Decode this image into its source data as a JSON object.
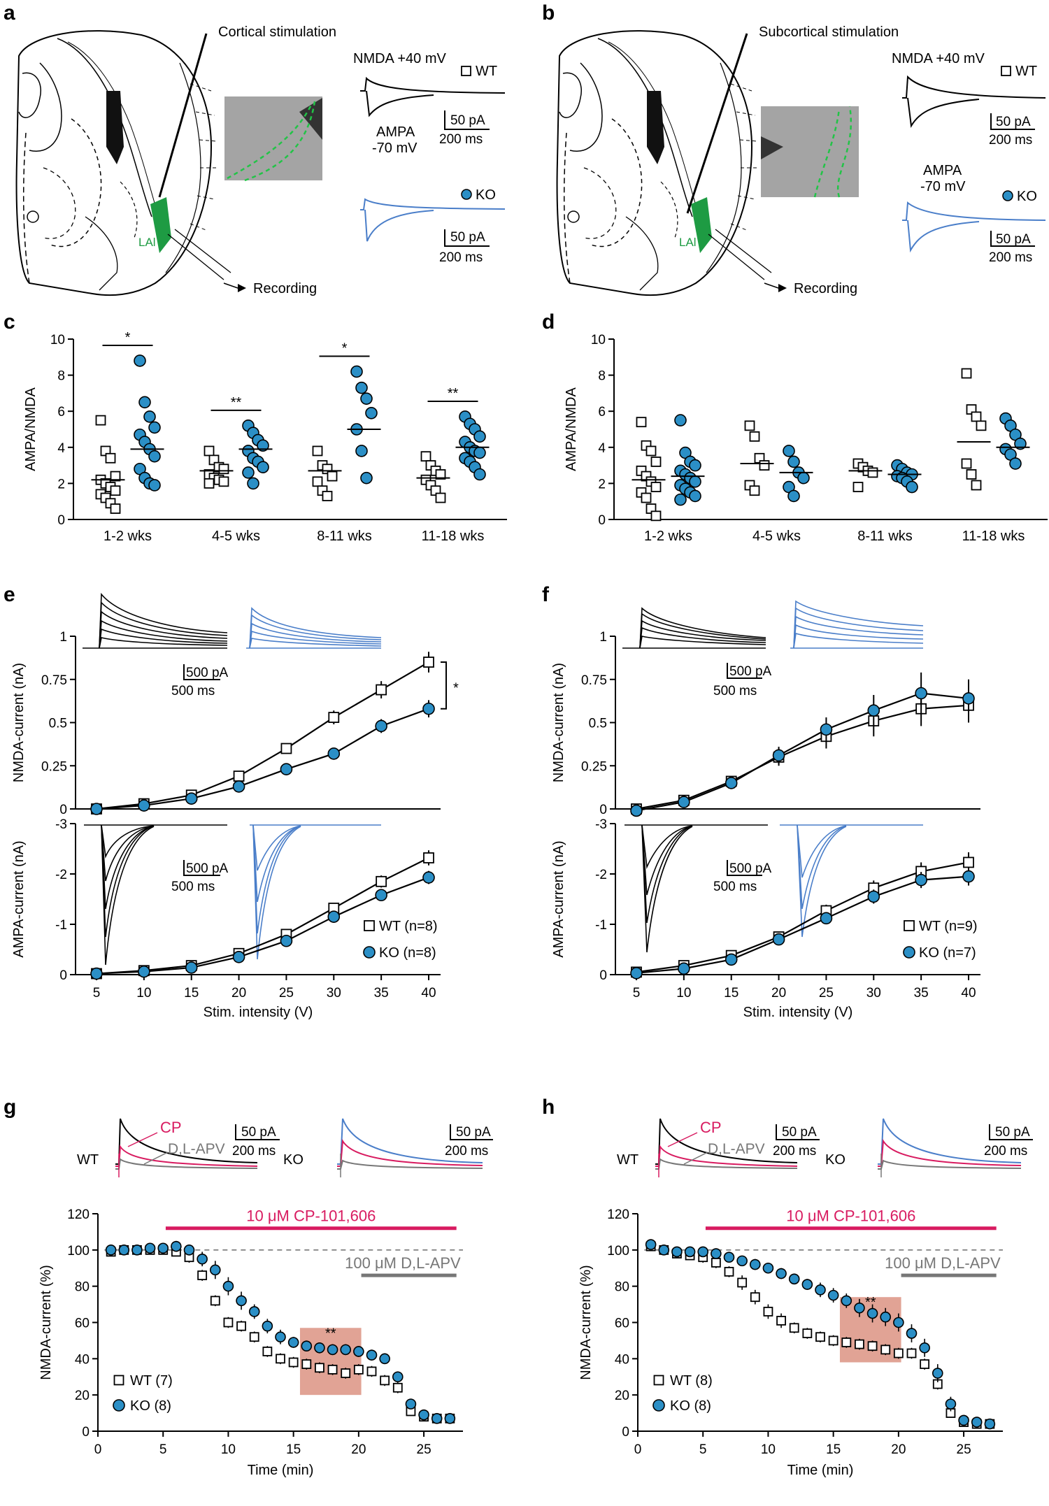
{
  "colors": {
    "wt": "#000000",
    "ko_fill": "#2b8fc6",
    "ko_trace": "#4a7ec9",
    "cp": "#d81b60",
    "apv": "#777777",
    "lal": "#1e9b43",
    "box": "#d98c7a"
  },
  "panels": {
    "a": {
      "letter": "a",
      "stim_label": "Cortical stimulation",
      "region_label": "LAl",
      "recording_label": "Recording",
      "nmda_label": "NMDA +40 mV",
      "ampa_label": "AMPA",
      "ampa_mv": "-70 mV",
      "wt_label": "WT",
      "ko_label": "KO",
      "scale_pa": "50 pA",
      "scale_ms": "200 ms"
    },
    "b": {
      "letter": "b",
      "stim_label": "Subcortical stimulation",
      "region_label": "LAl",
      "recording_label": "Recording",
      "nmda_label": "NMDA +40 mV",
      "ampa_label": "AMPA",
      "ampa_mv": "-70 mV",
      "wt_label": "WT",
      "ko_label": "KO",
      "scale_pa": "50 pA",
      "scale_ms": "200 ms"
    },
    "c": {
      "letter": "c"
    },
    "d": {
      "letter": "d"
    },
    "e": {
      "letter": "e",
      "scale_pa": "500 pA",
      "scale_ms": "500 ms",
      "sig": "*"
    },
    "f": {
      "letter": "f",
      "scale_pa": "500 pA",
      "scale_ms": "500 ms"
    },
    "g": {
      "letter": "g",
      "wt_label": "WT",
      "ko_label": "KO",
      "cp_label": "CP",
      "apv_label": "D,L-APV",
      "scale_pa": "50 pA",
      "scale_ms": "200 ms"
    },
    "h": {
      "letter": "h",
      "wt_label": "WT",
      "ko_label": "KO",
      "cp_label": "CP",
      "apv_label": "D,L-APV",
      "scale_pa": "50 pA",
      "scale_ms": "200 ms"
    }
  },
  "chart_data": [
    {
      "id": "c",
      "type": "scatter",
      "ylabel": "AMPA/NMDA",
      "ylim": [
        0,
        10
      ],
      "yticks": [
        0,
        2,
        4,
        6,
        8,
        10
      ],
      "categories": [
        "1-2 wks",
        "4-5 wks",
        "8-11 wks",
        "11-18 wks"
      ],
      "series": [
        {
          "name": "WT",
          "values": [
            [
              5.5,
              3.8,
              3.4,
              2.4,
              2.2,
              2.0,
              1.8,
              1.6,
              1.4,
              1.2,
              0.9,
              0.6
            ],
            [
              3.8,
              3.3,
              2.9,
              2.8,
              2.5,
              2.3,
              2.2,
              2.1,
              2.0
            ],
            [
              3.8,
              3.0,
              2.8,
              2.4,
              2.1,
              1.6,
              1.3
            ],
            [
              3.5,
              3.0,
              2.7,
              2.5,
              2.2,
              1.9,
              1.6,
              1.2
            ]
          ],
          "means": [
            2.2,
            2.7,
            2.7,
            2.3
          ]
        },
        {
          "name": "KO",
          "values": [
            [
              8.8,
              6.5,
              5.7,
              5.1,
              4.7,
              4.3,
              3.9,
              3.5,
              2.8,
              2.3,
              2.0,
              1.9
            ],
            [
              5.2,
              4.8,
              4.4,
              4.1,
              3.8,
              3.4,
              3.2,
              2.9,
              2.6,
              2.0
            ],
            [
              8.2,
              7.3,
              6.7,
              5.9,
              5.0,
              3.8,
              2.3
            ],
            [
              5.7,
              5.3,
              5.0,
              4.6,
              4.3,
              4.0,
              3.8,
              3.7,
              3.4,
              3.2,
              2.9,
              2.5
            ]
          ],
          "means": [
            3.9,
            3.9,
            5.0,
            4.0
          ]
        }
      ],
      "significance": [
        "*",
        "**",
        "*",
        "**"
      ]
    },
    {
      "id": "d",
      "type": "scatter",
      "ylabel": "AMPA/NMDA",
      "ylim": [
        0,
        10
      ],
      "yticks": [
        0,
        2,
        4,
        6,
        8,
        10
      ],
      "categories": [
        "1-2 wks",
        "4-5 wks",
        "8-11 wks",
        "11-18 wks"
      ],
      "series": [
        {
          "name": "WT",
          "values": [
            [
              5.4,
              4.1,
              3.8,
              3.2,
              2.7,
              2.4,
              2.1,
              1.8,
              1.5,
              1.2,
              0.6,
              0.2
            ],
            [
              5.2,
              4.6,
              3.4,
              3.0,
              1.9,
              1.6
            ],
            [
              3.1,
              2.9,
              2.7,
              2.6,
              1.8
            ],
            [
              8.1,
              6.1,
              5.7,
              5.2,
              3.1,
              2.5,
              1.9
            ]
          ],
          "means": [
            2.2,
            3.1,
            2.7,
            4.3
          ]
        },
        {
          "name": "KO",
          "values": [
            [
              5.5,
              3.7,
              3.2,
              3.0,
              2.7,
              2.5,
              2.3,
              2.1,
              1.9,
              1.7,
              1.5,
              1.3,
              1.1
            ],
            [
              3.8,
              3.2,
              2.6,
              2.3,
              1.8,
              1.3
            ],
            [
              3.0,
              2.8,
              2.6,
              2.5,
              2.4,
              2.3,
              2.1,
              1.8
            ],
            [
              5.6,
              5.2,
              4.7,
              4.2,
              3.9,
              3.6,
              3.1
            ]
          ],
          "means": [
            2.4,
            2.6,
            2.5,
            4.0
          ]
        }
      ],
      "significance": []
    },
    {
      "id": "e",
      "type": "line",
      "xlabel": "Stim. intensity (V)",
      "x": [
        5,
        10,
        15,
        20,
        25,
        30,
        35,
        40
      ],
      "subplots": [
        {
          "ylabel": "NMDA-current (nA)",
          "ylim": [
            0,
            1
          ],
          "yticks": [
            0,
            0.25,
            0.5,
            0.75,
            1
          ],
          "ytick_labels": [
            "0",
            "0.25",
            "0.5",
            "0.75",
            "1"
          ],
          "series": [
            {
              "name": "WT",
              "values": [
                0.0,
                0.03,
                0.08,
                0.19,
                0.35,
                0.53,
                0.69,
                0.85
              ],
              "err": [
                0.01,
                0.01,
                0.02,
                0.02,
                0.03,
                0.04,
                0.05,
                0.06
              ]
            },
            {
              "name": "KO",
              "values": [
                0.0,
                0.02,
                0.06,
                0.13,
                0.23,
                0.32,
                0.48,
                0.58
              ],
              "err": [
                0.01,
                0.01,
                0.01,
                0.02,
                0.02,
                0.03,
                0.04,
                0.05
              ]
            }
          ]
        },
        {
          "ylabel": "AMPA-current (nA)",
          "ylim": [
            0,
            -3
          ],
          "yticks": [
            0,
            -1,
            -2,
            -3
          ],
          "ytick_labels": [
            "0",
            "-1",
            "-2",
            "-3"
          ],
          "series": [
            {
              "name": "WT (n=8)",
              "values": [
                -0.02,
                -0.08,
                -0.18,
                -0.42,
                -0.8,
                -1.32,
                -1.85,
                -2.32
              ],
              "err": [
                0.02,
                0.03,
                0.04,
                0.06,
                0.08,
                0.1,
                0.12,
                0.15
              ]
            },
            {
              "name": "KO (n=8)",
              "values": [
                -0.02,
                -0.06,
                -0.14,
                -0.35,
                -0.67,
                -1.15,
                -1.58,
                -1.93
              ],
              "err": [
                0.02,
                0.03,
                0.04,
                0.05,
                0.07,
                0.09,
                0.11,
                0.13
              ]
            }
          ]
        }
      ]
    },
    {
      "id": "f",
      "type": "line",
      "xlabel": "Stim. intensity (V)",
      "x": [
        5,
        10,
        15,
        20,
        25,
        30,
        35,
        40
      ],
      "subplots": [
        {
          "ylabel": "NMDA-current (nA)",
          "ylim": [
            0,
            1
          ],
          "yticks": [
            0,
            0.25,
            0.5,
            0.75,
            1
          ],
          "ytick_labels": [
            "0",
            "0.25",
            "0.5",
            "0.75",
            "1"
          ],
          "series": [
            {
              "name": "WT",
              "values": [
                0.0,
                0.05,
                0.16,
                0.3,
                0.42,
                0.51,
                0.58,
                0.6
              ],
              "err": [
                0.01,
                0.02,
                0.03,
                0.05,
                0.07,
                0.09,
                0.1,
                0.1
              ]
            },
            {
              "name": "KO",
              "values": [
                -0.01,
                0.04,
                0.15,
                0.31,
                0.46,
                0.57,
                0.67,
                0.64
              ],
              "err": [
                0.01,
                0.02,
                0.03,
                0.05,
                0.07,
                0.09,
                0.12,
                0.11
              ]
            }
          ]
        },
        {
          "ylabel": "AMPA-current (nA)",
          "ylim": [
            0,
            -3
          ],
          "yticks": [
            0,
            -1,
            -2,
            -3
          ],
          "ytick_labels": [
            "0",
            "-1",
            "-2",
            "-3"
          ],
          "series": [
            {
              "name": "WT (n=9)",
              "values": [
                -0.05,
                -0.18,
                -0.38,
                -0.75,
                -1.27,
                -1.72,
                -2.05,
                -2.23
              ],
              "err": [
                0.03,
                0.04,
                0.06,
                0.08,
                0.12,
                0.15,
                0.18,
                0.2
              ]
            },
            {
              "name": "KO (n=7)",
              "values": [
                -0.03,
                -0.12,
                -0.3,
                -0.7,
                -1.12,
                -1.55,
                -1.88,
                -1.95
              ],
              "err": [
                0.02,
                0.04,
                0.05,
                0.08,
                0.11,
                0.14,
                0.16,
                0.18
              ]
            }
          ]
        }
      ]
    },
    {
      "id": "g",
      "type": "scatter",
      "xlabel": "Time (min)",
      "ylabel": "NMDA-current (%)",
      "xlim": [
        0,
        28
      ],
      "ylim": [
        0,
        120
      ],
      "xticks": [
        0,
        5,
        10,
        15,
        20,
        25
      ],
      "yticks": [
        0,
        20,
        40,
        60,
        80,
        100,
        120
      ],
      "cp_bar": {
        "label": "10 μM CP-101,606",
        "start": 5.2,
        "end": 27.5
      },
      "apv_bar": {
        "label": "100 μM D,L-APV",
        "start": 20.2,
        "end": 27.5
      },
      "highlight": {
        "x": [
          15.5,
          20.2
        ],
        "y": [
          20,
          57
        ],
        "label": "**"
      },
      "x": [
        1,
        2,
        3,
        4,
        5,
        6,
        7,
        8,
        9,
        10,
        11,
        12,
        13,
        14,
        15,
        16,
        17,
        18,
        19,
        20,
        21,
        22,
        23,
        24,
        25,
        26,
        27
      ],
      "series": [
        {
          "name": "WT (7)",
          "values": [
            99,
            100,
            100,
            100,
            100,
            99,
            96,
            86,
            72,
            60,
            58,
            52,
            44,
            40,
            38,
            37,
            35,
            34,
            32,
            34,
            33,
            28,
            24,
            11,
            8,
            7,
            7
          ],
          "err": [
            2,
            2,
            2,
            2,
            2,
            2,
            3,
            3,
            3,
            3,
            3,
            3,
            3,
            3,
            3,
            3,
            3,
            3,
            3,
            3,
            3,
            3,
            3,
            2,
            2,
            1,
            1
          ]
        },
        {
          "name": "KO (8)",
          "values": [
            100,
            100,
            100,
            101,
            101,
            102,
            100,
            95,
            89,
            80,
            72,
            66,
            58,
            52,
            49,
            47,
            46,
            45,
            45,
            44,
            42,
            40,
            30,
            15,
            9,
            7,
            7
          ],
          "err": [
            2,
            2,
            2,
            2,
            2,
            3,
            3,
            4,
            5,
            5,
            5,
            4,
            4,
            4,
            3,
            3,
            3,
            3,
            3,
            3,
            3,
            3,
            3,
            2,
            2,
            1,
            1
          ]
        }
      ],
      "legend": [
        "WT (7)",
        "KO (8)"
      ]
    },
    {
      "id": "h",
      "type": "scatter",
      "xlabel": "Time (min)",
      "ylabel": "NMDA-current (%)",
      "xlim": [
        0,
        28
      ],
      "ylim": [
        0,
        120
      ],
      "xticks": [
        0,
        5,
        10,
        15,
        20,
        25
      ],
      "yticks": [
        0,
        20,
        40,
        60,
        80,
        100,
        120
      ],
      "cp_bar": {
        "label": "10 μM CP-101,606",
        "start": 5.2,
        "end": 27.5
      },
      "apv_bar": {
        "label": "100 μM D,L-APV",
        "start": 20.2,
        "end": 27.5
      },
      "highlight": {
        "x": [
          15.5,
          20.2
        ],
        "y": [
          38,
          74
        ],
        "label": "**"
      },
      "x": [
        1,
        2,
        3,
        4,
        5,
        6,
        7,
        8,
        9,
        10,
        11,
        12,
        13,
        14,
        15,
        16,
        17,
        18,
        19,
        20,
        21,
        22,
        23,
        24,
        25,
        26,
        27
      ],
      "series": [
        {
          "name": "WT (8)",
          "values": [
            102,
            100,
            98,
            97,
            96,
            93,
            88,
            82,
            74,
            66,
            61,
            57,
            54,
            52,
            50,
            49,
            48,
            47,
            45,
            43,
            43,
            37,
            26,
            10,
            5,
            4,
            4
          ],
          "err": [
            2,
            2,
            2,
            2,
            3,
            3,
            3,
            4,
            4,
            4,
            4,
            3,
            3,
            3,
            3,
            3,
            3,
            3,
            3,
            3,
            3,
            3,
            3,
            2,
            2,
            1,
            1
          ]
        },
        {
          "name": "KO (8)",
          "values": [
            103,
            100,
            99,
            99,
            99,
            98,
            96,
            94,
            92,
            90,
            87,
            84,
            81,
            78,
            75,
            72,
            68,
            65,
            63,
            60,
            54,
            46,
            32,
            15,
            6,
            5,
            4
          ],
          "err": [
            2,
            2,
            2,
            2,
            2,
            2,
            2,
            2,
            3,
            3,
            3,
            3,
            3,
            4,
            4,
            4,
            5,
            5,
            5,
            5,
            5,
            5,
            5,
            4,
            2,
            1,
            1
          ]
        }
      ],
      "legend": [
        "WT (8)",
        "KO (8)"
      ]
    }
  ]
}
